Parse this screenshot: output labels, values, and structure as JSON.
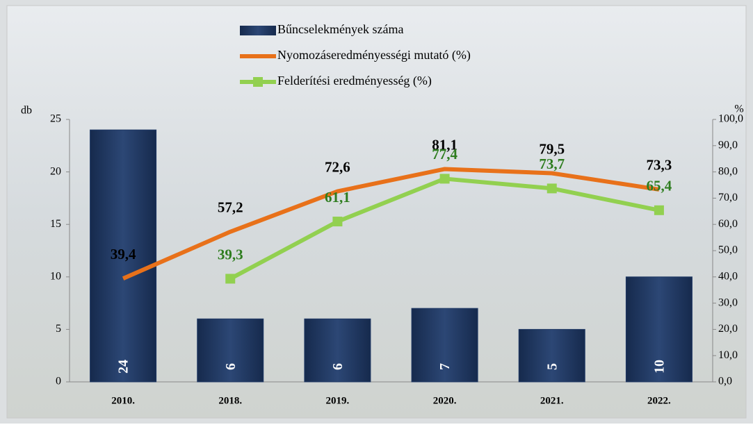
{
  "chart_data": {
    "type": "bar-line",
    "y_label": "db",
    "y2_label": "%",
    "categories": [
      "2010.",
      "2018.",
      "2019.",
      "2020.",
      "2021.",
      "2022."
    ],
    "series": [
      {
        "name": "Bűncselekmények száma",
        "type": "bar",
        "color": "#1f3864",
        "values": [
          24,
          6,
          6,
          7,
          5,
          10
        ]
      },
      {
        "name": "Nyomozáseredményességi mutató (%)",
        "type": "line",
        "axis": "y2",
        "color": "#e8711a",
        "label_color": "#000000",
        "values": [
          39.4,
          57.2,
          72.6,
          81.1,
          79.5,
          73.3
        ],
        "value_labels": [
          "39,4",
          "57,2",
          "72,6",
          "81,1",
          "79,5",
          "73,3"
        ]
      },
      {
        "name": "Felderítési eredményesség (%)",
        "type": "line",
        "axis": "y2",
        "color": "#92d050",
        "label_color": "#2e7d1f",
        "values": [
          null,
          39.3,
          61.1,
          77.4,
          73.7,
          65.4
        ],
        "value_labels": [
          null,
          "39,3",
          "61,1",
          "77,4",
          "73,7",
          "65,4"
        ]
      }
    ],
    "ylim": [
      0,
      25
    ],
    "yticks": [
      0,
      5,
      10,
      15,
      20,
      25
    ],
    "y2lim": [
      0,
      100
    ],
    "y2ticks": [
      {
        "value": 0,
        "label": "0,0"
      },
      {
        "value": 10,
        "label": "10,0"
      },
      {
        "value": 20,
        "label": "20,0"
      },
      {
        "value": 30,
        "label": "30,0"
      },
      {
        "value": 40,
        "label": "40,0"
      },
      {
        "value": 50,
        "label": "50,0"
      },
      {
        "value": 60,
        "label": "60,0"
      },
      {
        "value": 70,
        "label": "70,0"
      },
      {
        "value": 80,
        "label": "80,0"
      },
      {
        "value": 90,
        "label": "90,0"
      },
      {
        "value": 100,
        "label": "100,0"
      }
    ]
  }
}
